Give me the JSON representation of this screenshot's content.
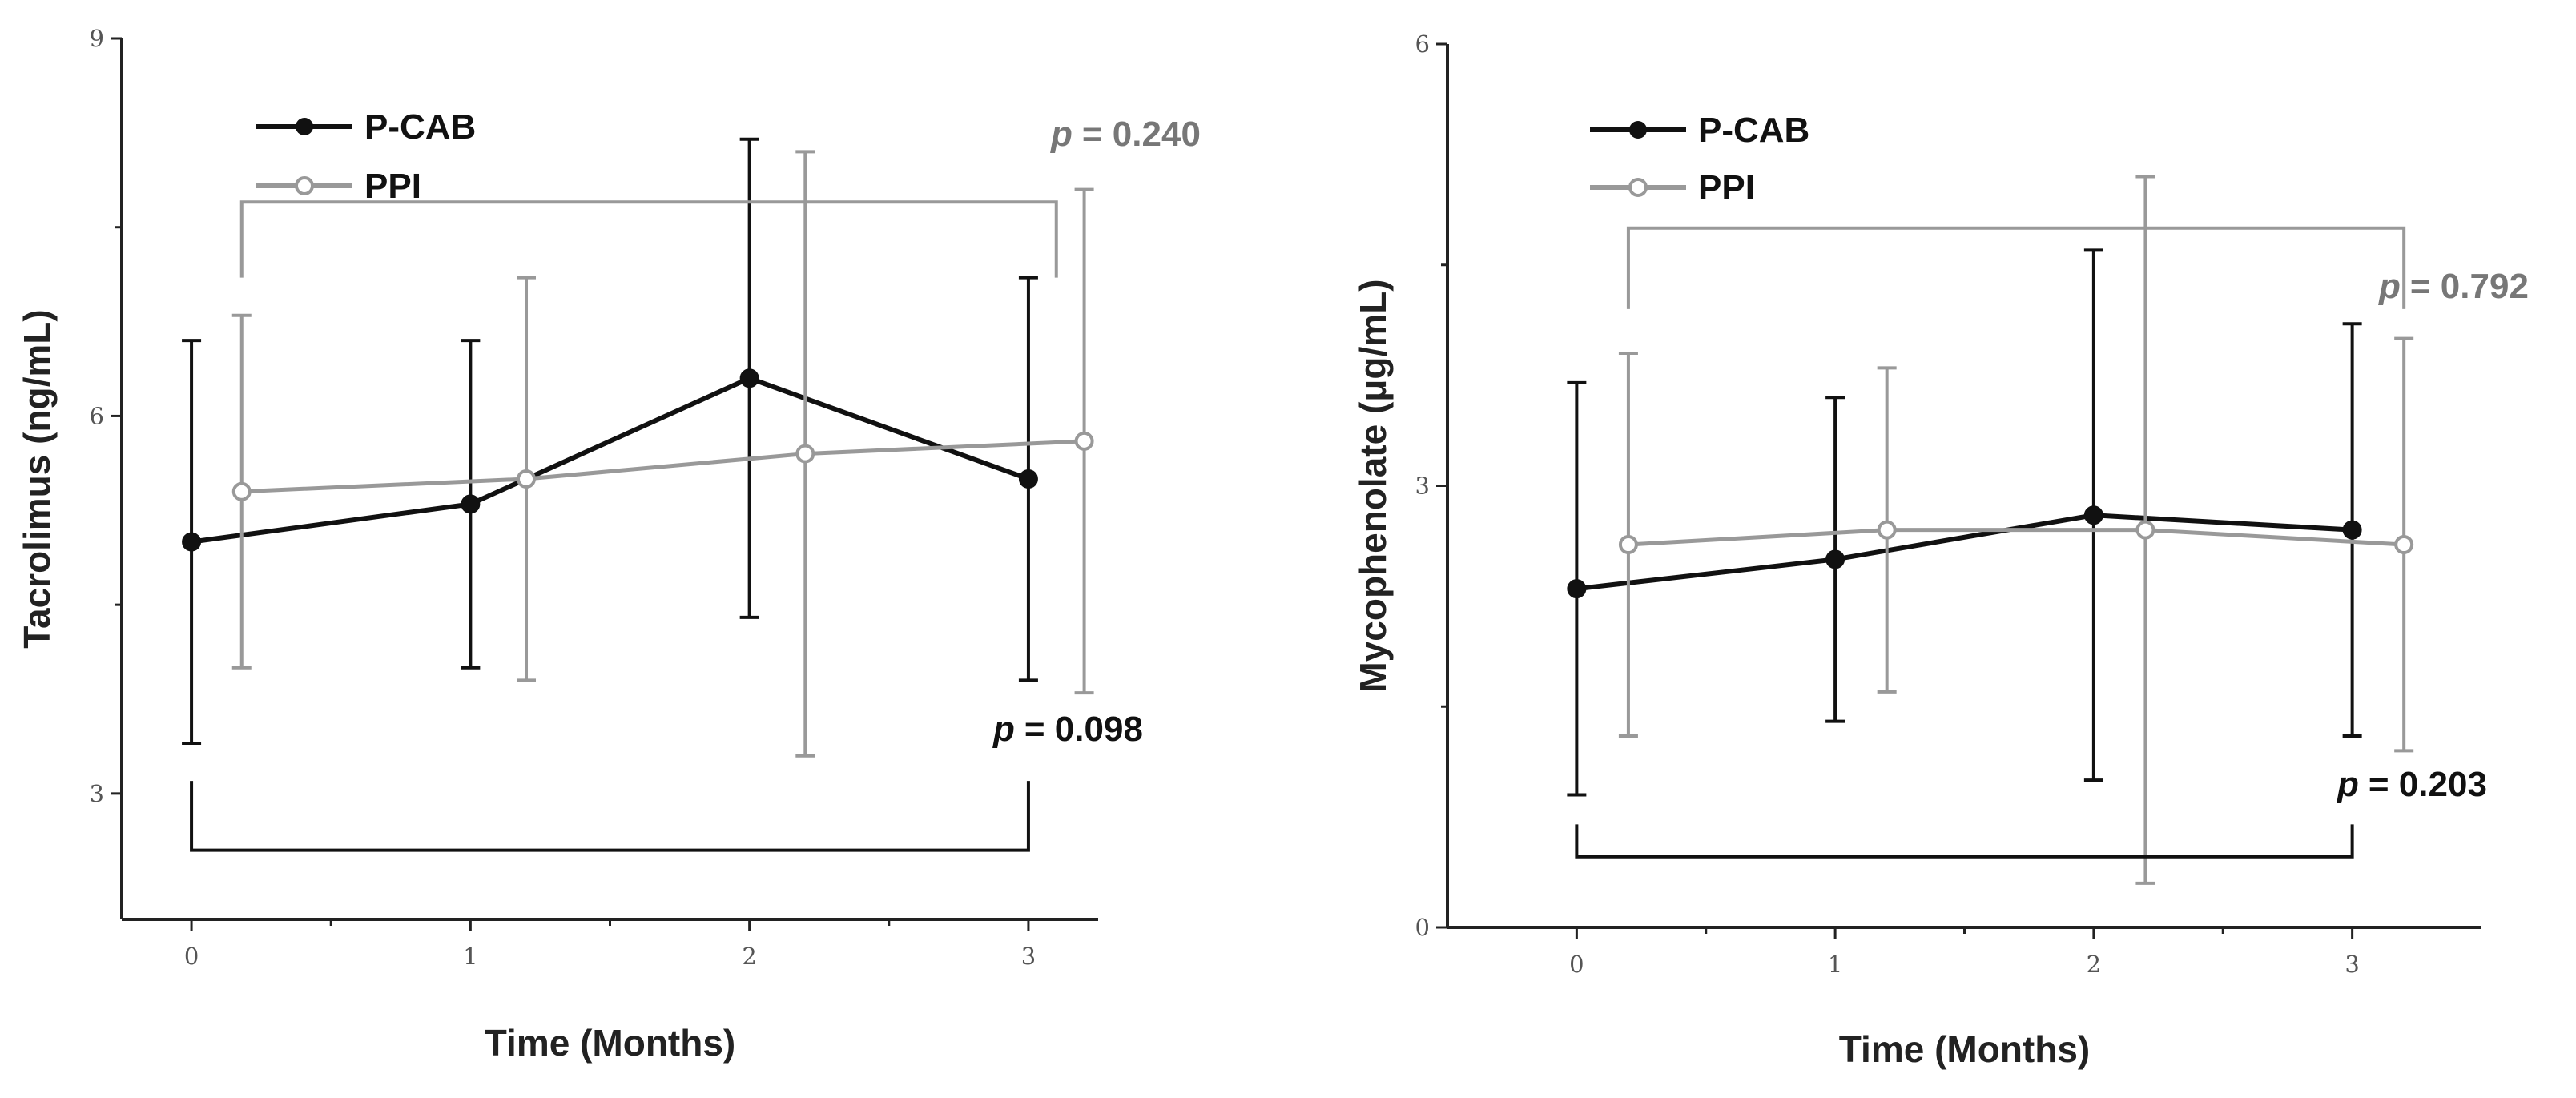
{
  "colors": {
    "pcab": "#111111",
    "ppi": "#999999",
    "pcab_pval": "#111111",
    "ppi_pval": "#777777"
  },
  "chart_data": [
    {
      "type": "line",
      "xlabel": "Time (Months)",
      "ylabel": "Tacrolimus (ng/mL)",
      "x_ticks": [
        "0",
        "1",
        "2",
        "3"
      ],
      "y_ticks": [
        "3",
        "6",
        "9"
      ],
      "ylim": [
        2,
        9
      ],
      "xlim": [
        -0.25,
        3.25
      ],
      "legend": [
        "P-CAB",
        "PPI"
      ],
      "series": [
        {
          "name": "P-CAB",
          "x": [
            0,
            1,
            2,
            3
          ],
          "y": [
            5.0,
            5.3,
            6.3,
            5.5
          ],
          "err_low": [
            3.4,
            4.0,
            4.4,
            3.9
          ],
          "err_high": [
            6.6,
            6.6,
            8.2,
            7.1
          ]
        },
        {
          "name": "PPI",
          "x": [
            0.18,
            1.2,
            2.2,
            3.2
          ],
          "y": [
            5.4,
            5.5,
            5.7,
            5.8
          ],
          "err_low": [
            4.0,
            3.9,
            3.3,
            3.8
          ],
          "err_high": [
            6.8,
            7.1,
            8.1,
            7.8
          ]
        }
      ],
      "brackets": [
        {
          "series": "PPI",
          "p_label": "p",
          "p_value": "= 0.240",
          "from_x": 0.18,
          "to_x": 3.1,
          "level": 7.7,
          "tip": 7.1
        },
        {
          "series": "P-CAB",
          "p_label": "p",
          "p_value": "= 0.098",
          "from_x": 0,
          "to_x": 3,
          "level": 2.55,
          "tip": 3.1
        }
      ]
    },
    {
      "type": "line",
      "xlabel": "Time (Months)",
      "ylabel": "Mycophenolate (μg/mL)",
      "x_ticks": [
        "0",
        "1",
        "2",
        "3"
      ],
      "y_ticks": [
        "0",
        "3",
        "6"
      ],
      "ylim": [
        0,
        6
      ],
      "xlim": [
        -0.5,
        3.5
      ],
      "legend": [
        "P-CAB",
        "PPI"
      ],
      "series": [
        {
          "name": "P-CAB",
          "x": [
            0,
            1,
            2,
            3
          ],
          "y": [
            2.3,
            2.5,
            2.8,
            2.7
          ],
          "err_low": [
            0.9,
            1.4,
            1.0,
            1.3
          ],
          "err_high": [
            3.7,
            3.6,
            4.6,
            4.1
          ]
        },
        {
          "name": "PPI",
          "x": [
            0.2,
            1.2,
            2.2,
            3.2
          ],
          "y": [
            2.6,
            2.7,
            2.7,
            2.6
          ],
          "err_low": [
            1.3,
            1.6,
            0.3,
            1.2
          ],
          "err_high": [
            3.9,
            3.8,
            5.1,
            4.0
          ]
        }
      ],
      "brackets": [
        {
          "series": "PPI",
          "p_label": "p",
          "p_value": "= 0.792",
          "from_x": 0.2,
          "to_x": 3.2,
          "level": 4.75,
          "tip": 4.2
        },
        {
          "series": "P-CAB",
          "p_label": "p",
          "p_value": "= 0.203",
          "from_x": 0,
          "to_x": 3,
          "level": 0.48,
          "tip": 0.7
        }
      ]
    }
  ]
}
